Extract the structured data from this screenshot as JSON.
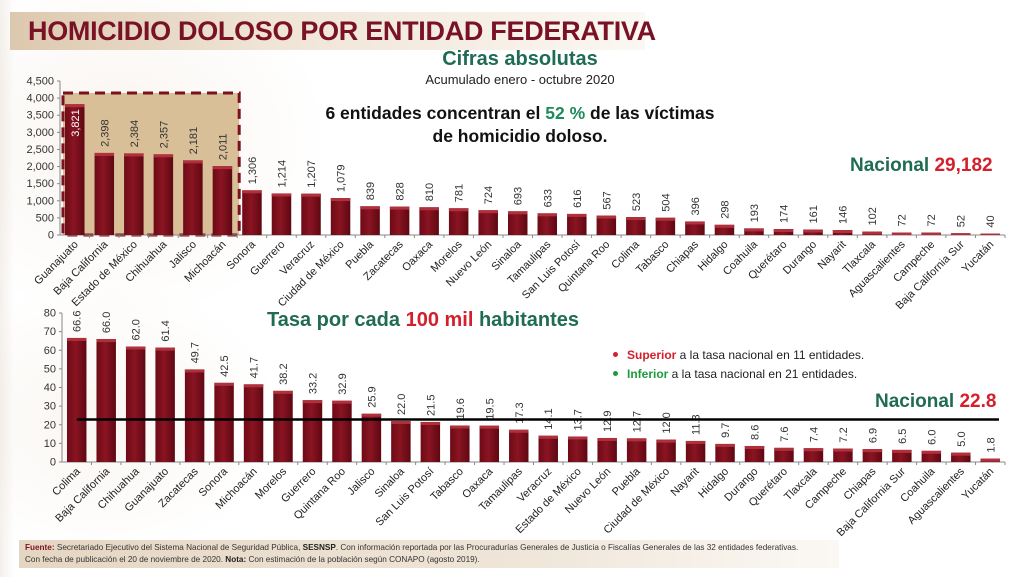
{
  "header": {
    "title": "HOMICIDIO DOLOSO POR ENTIDAD FEDERATIVA"
  },
  "top_panel": {
    "subtitle": "Cifras absolutas",
    "period": "Acumulado enero - octubre 2020",
    "headline_part1": "6 entidades concentran el ",
    "headline_highlight": "52 %",
    "headline_part2": " de las víctimas de homicidio doloso.",
    "nacional_label": "Nacional",
    "nacional_value": "29,182"
  },
  "bottom_panel": {
    "title_part1": "Tasa por cada ",
    "title_highlight": "100 mil",
    "title_part2": " habitantes",
    "legend": [
      {
        "keyword": "Superior",
        "text": " a la tasa nacional en 11 entidades.",
        "color": "#d3202c"
      },
      {
        "keyword": "Inferior",
        "text": " a la tasa nacional en 21 entidades.",
        "color": "#1f9a3e"
      }
    ],
    "nacional_label": "Nacional",
    "nacional_value": "22.8"
  },
  "footer": {
    "fuente_label": "Fuente:",
    "fuente_text": " Secretariado Ejecutivo del Sistema Nacional de Seguridad Pública, ",
    "fuente_bold": "SESNSP",
    "fuente_rest": ". Con información reportada por las Procuradurías Generales de Justicia o Fiscalías Generales de las 32 entidades federativas.",
    "line2_text": "Con fecha de publicación el 20 de noviembre de 2020. ",
    "nota_label": "Nota:",
    "nota_text": " Con estimación de la población según CONAPO (agosto 2019)."
  },
  "colors": {
    "bar": "#7f0f1c",
    "bar_highlight": "#b0303c",
    "title": "#7a1225",
    "green": "#1f6b54",
    "red": "#d3202c",
    "highlight_box": "#d9bf98"
  },
  "chart_data": [
    {
      "type": "bar",
      "title": "Cifras absolutas",
      "subtitle": "Acumulado enero - octubre 2020",
      "xlabel": "",
      "ylabel": "",
      "ylim": [
        0,
        4500
      ],
      "yticks": [
        0,
        500,
        1000,
        1500,
        2000,
        2500,
        3000,
        3500,
        4000,
        4500
      ],
      "ytick_labels": [
        "0",
        "500",
        "1,000",
        "1,500",
        "2,000",
        "2,500",
        "3,000",
        "3,500",
        "4,000",
        "4,500"
      ],
      "grid": false,
      "highlighted_first_n": 6,
      "categories": [
        "Guanajuato",
        "Baja California",
        "Estado de México",
        "Chihuahua",
        "Jalisco",
        "Michoacán",
        "Sonora",
        "Guerrero",
        "Veracruz",
        "Ciudad de México",
        "Puebla",
        "Zacatecas",
        "Oaxaca",
        "Morelos",
        "Nuevo León",
        "Sinaloa",
        "Tamaulipas",
        "San Luis Potosí",
        "Quintana Roo",
        "Colima",
        "Tabasco",
        "Chiapas",
        "Hidalgo",
        "Coahuila",
        "Querétaro",
        "Durango",
        "Nayarit",
        "Tlaxcala",
        "Aguascalientes",
        "Campeche",
        "Baja California Sur",
        "Yucatán"
      ],
      "values": [
        3821,
        2398,
        2384,
        2357,
        2181,
        2011,
        1306,
        1214,
        1207,
        1079,
        839,
        828,
        810,
        781,
        724,
        693,
        633,
        616,
        567,
        523,
        504,
        396,
        298,
        193,
        174,
        161,
        146,
        102,
        72,
        72,
        52,
        40
      ],
      "value_labels": [
        "3,821",
        "2,398",
        "2,384",
        "2,357",
        "2,181",
        "2,011",
        "1,306",
        "1,214",
        "1,207",
        "1,079",
        "839",
        "828",
        "810",
        "781",
        "724",
        "693",
        "633",
        "616",
        "567",
        "523",
        "504",
        "396",
        "298",
        "193",
        "174",
        "161",
        "146",
        "102",
        "72",
        "72",
        "52",
        "40"
      ],
      "annotation": "Nacional 29,182"
    },
    {
      "type": "bar",
      "title": "Tasa por cada 100 mil habitantes",
      "xlabel": "",
      "ylabel": "",
      "ylim": [
        0,
        80
      ],
      "yticks": [
        0,
        10,
        20,
        30,
        40,
        50,
        60,
        70,
        80
      ],
      "ytick_labels": [
        "0",
        "10",
        "20",
        "30",
        "40",
        "50",
        "60",
        "70",
        "80"
      ],
      "grid": false,
      "reference_line": {
        "label": "Nacional",
        "value": 22.8
      },
      "categories": [
        "Colima",
        "Baja California",
        "Chihuahua",
        "Guanajuato",
        "Zacatecas",
        "Sonora",
        "Michoacán",
        "Morelos",
        "Guerrero",
        "Quintana Roo",
        "Jalisco",
        "Sinaloa",
        "San Luis Potosí",
        "Tabasco",
        "Oaxaca",
        "Tamaulipas",
        "Veracruz",
        "Estado de México",
        "Nuevo León",
        "Puebla",
        "Ciudad de México",
        "Nayarit",
        "Hidalgo",
        "Durango",
        "Querétaro",
        "Tlaxcala",
        "Campeche",
        "Chiapas",
        "Baja California Sur",
        "Coahuila",
        "Aguascalientes",
        "Yucatán"
      ],
      "values": [
        66.6,
        66.0,
        62.0,
        61.4,
        49.7,
        42.5,
        41.7,
        38.2,
        33.2,
        32.9,
        25.9,
        22.0,
        21.5,
        19.6,
        19.5,
        17.3,
        14.1,
        13.7,
        12.9,
        12.7,
        12.0,
        11.3,
        9.7,
        8.6,
        7.6,
        7.4,
        7.2,
        6.9,
        6.5,
        6.0,
        5.0,
        1.8
      ],
      "value_labels": [
        "66.6",
        "66.0",
        "62.0",
        "61.4",
        "49.7",
        "42.5",
        "41.7",
        "38.2",
        "33.2",
        "32.9",
        "25.9",
        "22.0",
        "21.5",
        "19.6",
        "19.5",
        "17.3",
        "14.1",
        "13.7",
        "12.9",
        "12.7",
        "12.0",
        "11.3",
        "9.7",
        "8.6",
        "7.6",
        "7.4",
        "7.2",
        "6.9",
        "6.5",
        "6.0",
        "5.0",
        "1.8"
      ],
      "annotation": "Nacional 22.8"
    }
  ]
}
